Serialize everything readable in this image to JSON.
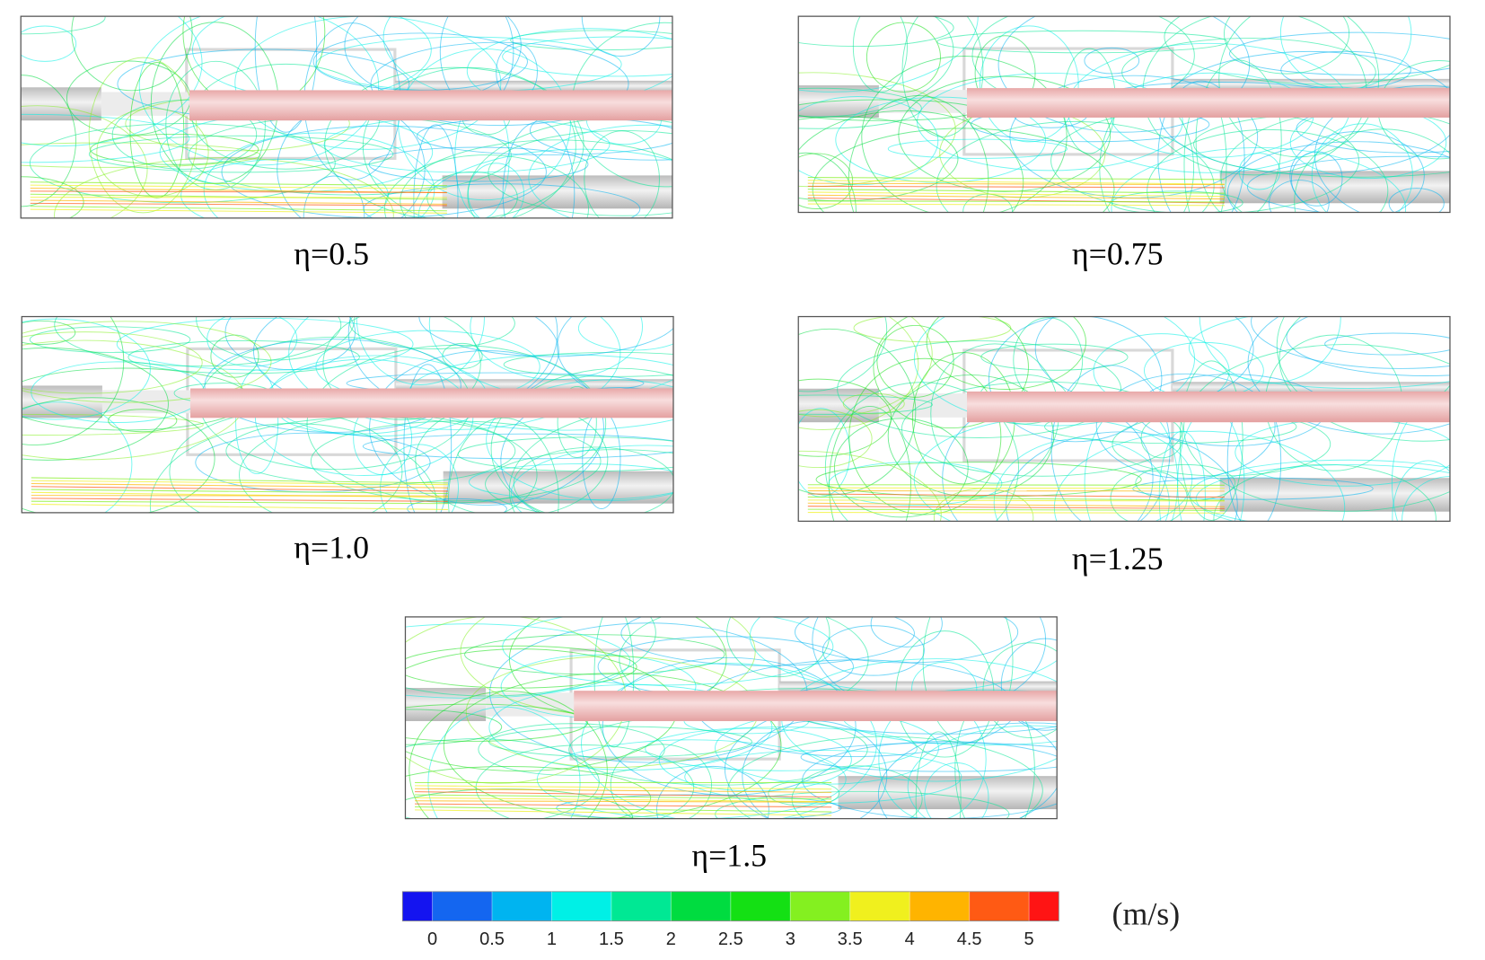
{
  "panels": [
    {
      "label": "η=0.5"
    },
    {
      "label": "η=0.75"
    },
    {
      "label": "η=1.0"
    },
    {
      "label": "η=1.25"
    },
    {
      "label": "η=1.5"
    }
  ],
  "colorbar": {
    "unit": "(m/s)",
    "lim": [
      -0.25,
      5.25
    ],
    "ticks": [
      0,
      0.5,
      1,
      1.5,
      2,
      2.5,
      3,
      3.5,
      4,
      4.5,
      5
    ],
    "colors": [
      "#1414f0",
      "#1466f0",
      "#00b4f0",
      "#00f0e6",
      "#00e894",
      "#00dc40",
      "#14e014",
      "#84f020",
      "#f0f01e",
      "#ffb400",
      "#ff5a14",
      "#ff1414"
    ]
  }
}
